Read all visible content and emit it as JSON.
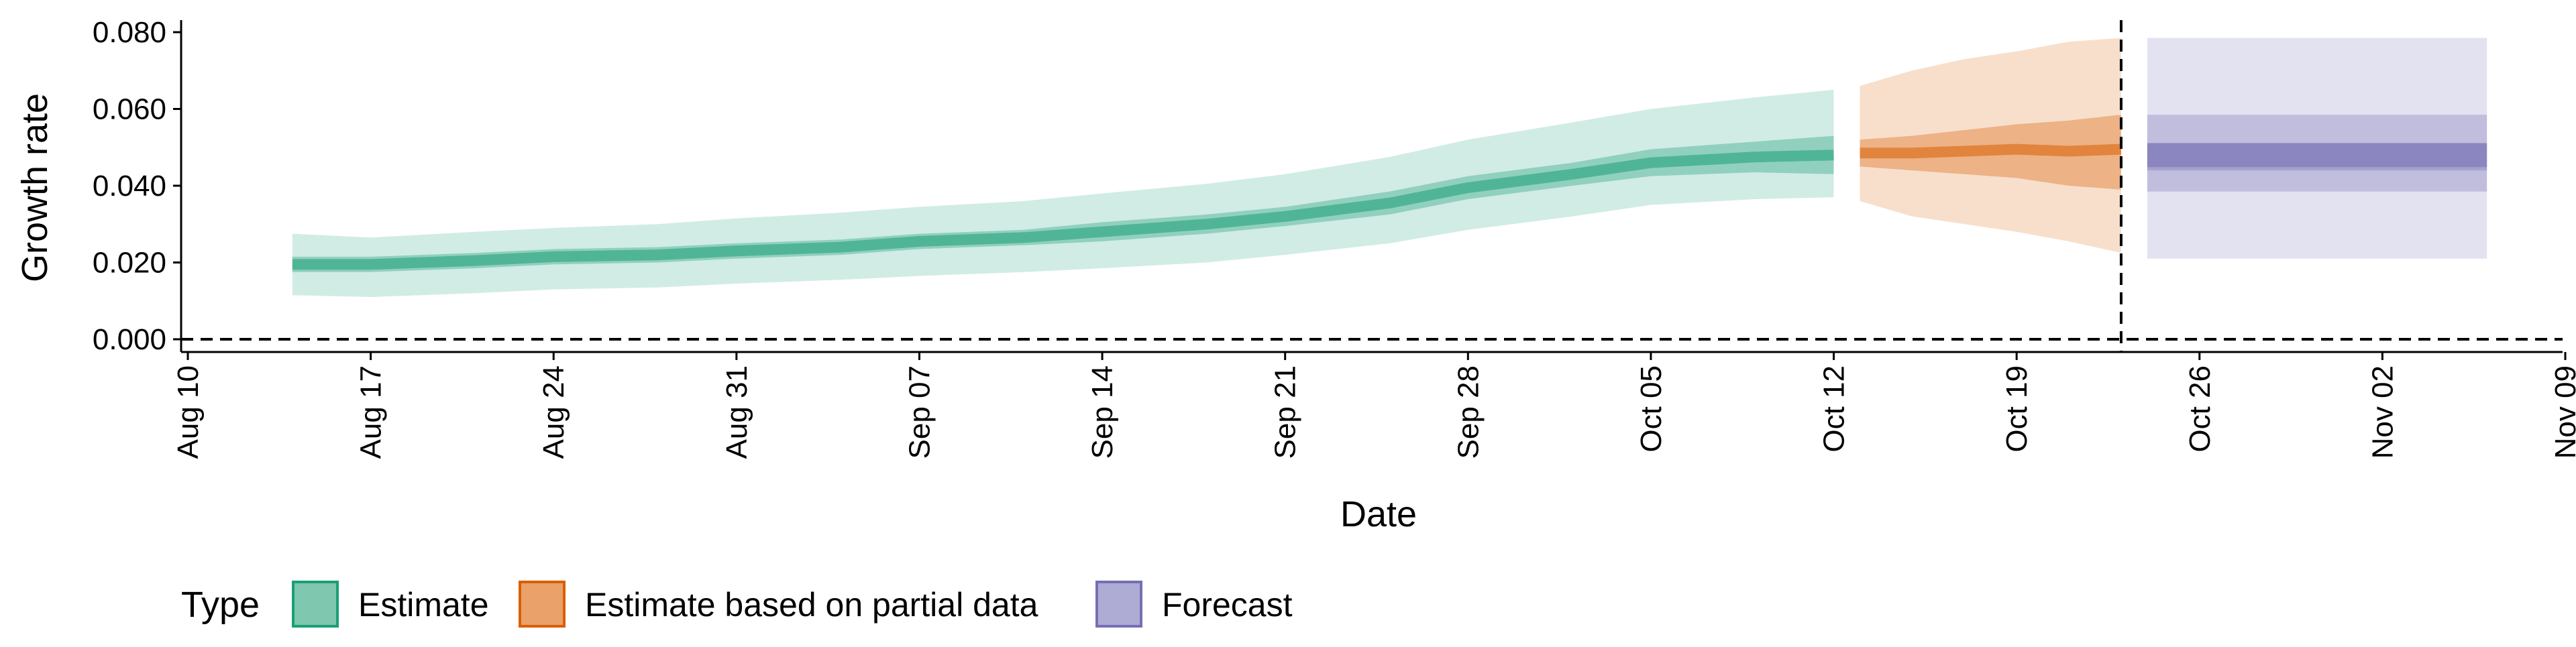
{
  "chart_data": {
    "type": "area",
    "xlabel": "Date",
    "ylabel": "Growth rate",
    "x_ticks": [
      {
        "date": "2020-08-10",
        "label": "Aug 10"
      },
      {
        "date": "2020-08-17",
        "label": "Aug 17"
      },
      {
        "date": "2020-08-24",
        "label": "Aug 24"
      },
      {
        "date": "2020-08-31",
        "label": "Aug 31"
      },
      {
        "date": "2020-09-07",
        "label": "Sep 07"
      },
      {
        "date": "2020-09-14",
        "label": "Sep 14"
      },
      {
        "date": "2020-09-21",
        "label": "Sep 21"
      },
      {
        "date": "2020-09-28",
        "label": "Sep 28"
      },
      {
        "date": "2020-10-05",
        "label": "Oct 05"
      },
      {
        "date": "2020-10-12",
        "label": "Oct 12"
      },
      {
        "date": "2020-10-19",
        "label": "Oct 19"
      },
      {
        "date": "2020-10-26",
        "label": "Oct 26"
      },
      {
        "date": "2020-11-02",
        "label": "Nov 02"
      },
      {
        "date": "2020-11-09",
        "label": "Nov 09"
      }
    ],
    "y_ticks": [
      {
        "value": 0.0,
        "label": "0.000"
      },
      {
        "value": 0.02,
        "label": "0.020"
      },
      {
        "value": 0.04,
        "label": "0.040"
      },
      {
        "value": 0.06,
        "label": "0.060"
      },
      {
        "value": 0.08,
        "label": "0.080"
      }
    ],
    "xlim": [
      "2020-08-10",
      "2020-11-09"
    ],
    "ylim": [
      0.0,
      0.08
    ],
    "reference_lines": {
      "horizontal_y": 0.0,
      "vertical_date": "2020-10-23"
    },
    "series": [
      {
        "name": "Estimate",
        "color": "#1b9e77",
        "dates": [
          "2020-08-14",
          "2020-08-17",
          "2020-08-21",
          "2020-08-24",
          "2020-08-28",
          "2020-08-31",
          "2020-09-04",
          "2020-09-07",
          "2020-09-11",
          "2020-09-14",
          "2020-09-18",
          "2020-09-21",
          "2020-09-25",
          "2020-09-28",
          "2020-10-02",
          "2020-10-05",
          "2020-10-09",
          "2020-10-12"
        ],
        "median": [
          0.0195,
          0.0195,
          0.0205,
          0.0215,
          0.022,
          0.023,
          0.024,
          0.0255,
          0.0265,
          0.028,
          0.03,
          0.032,
          0.0355,
          0.0395,
          0.043,
          0.046,
          0.0475,
          0.048
        ],
        "lower_50": [
          0.0175,
          0.0175,
          0.0185,
          0.0195,
          0.02,
          0.021,
          0.022,
          0.0235,
          0.0245,
          0.0255,
          0.0275,
          0.0295,
          0.0325,
          0.0365,
          0.04,
          0.0425,
          0.0435,
          0.043
        ],
        "upper_50": [
          0.0215,
          0.0215,
          0.0225,
          0.0235,
          0.024,
          0.025,
          0.026,
          0.0275,
          0.0285,
          0.0305,
          0.0325,
          0.0345,
          0.0385,
          0.0425,
          0.046,
          0.0495,
          0.0515,
          0.053
        ],
        "lower_90": [
          0.0115,
          0.011,
          0.012,
          0.013,
          0.0135,
          0.0145,
          0.0155,
          0.0165,
          0.0175,
          0.0185,
          0.02,
          0.022,
          0.025,
          0.0285,
          0.032,
          0.035,
          0.0365,
          0.037
        ],
        "upper_90": [
          0.0275,
          0.0265,
          0.028,
          0.029,
          0.03,
          0.0315,
          0.033,
          0.0345,
          0.036,
          0.038,
          0.0405,
          0.043,
          0.0475,
          0.052,
          0.0565,
          0.06,
          0.063,
          0.065
        ]
      },
      {
        "name": "Estimate based on partial data",
        "color": "#d95f02",
        "dates": [
          "2020-10-13",
          "2020-10-15",
          "2020-10-17",
          "2020-10-19",
          "2020-10-21",
          "2020-10-23"
        ],
        "median": [
          0.0485,
          0.0485,
          0.049,
          0.0495,
          0.049,
          0.0495
        ],
        "lower_50": [
          0.045,
          0.044,
          0.043,
          0.042,
          0.04,
          0.039
        ],
        "upper_50": [
          0.052,
          0.053,
          0.0545,
          0.056,
          0.057,
          0.0585
        ],
        "lower_90": [
          0.036,
          0.032,
          0.03,
          0.028,
          0.0255,
          0.0225
        ],
        "upper_90": [
          0.066,
          0.07,
          0.073,
          0.075,
          0.0775,
          0.0785
        ]
      },
      {
        "name": "Forecast",
        "color": "#7570b3",
        "dates": [
          "2020-10-24",
          "2020-11-06"
        ],
        "median": [
          0.048,
          0.048
        ],
        "lower_50": [
          0.044,
          0.044
        ],
        "upper_50": [
          0.051,
          0.051
        ],
        "lower_90": [
          0.0385,
          0.0385
        ],
        "upper_90": [
          0.0585,
          0.0585
        ],
        "lower_95": [
          0.021,
          0.021
        ],
        "upper_95": [
          0.0785,
          0.0785
        ]
      }
    ],
    "legend": {
      "title": "Type",
      "position": "bottom",
      "items": [
        {
          "label": "Estimate",
          "fill": "#7fc7ae",
          "border": "#1b9e77"
        },
        {
          "label": "Estimate based on partial data",
          "fill": "#eba16a",
          "border": "#d95f02"
        },
        {
          "label": "Forecast",
          "fill": "#aeacd5",
          "border": "#7570b3"
        }
      ]
    }
  }
}
